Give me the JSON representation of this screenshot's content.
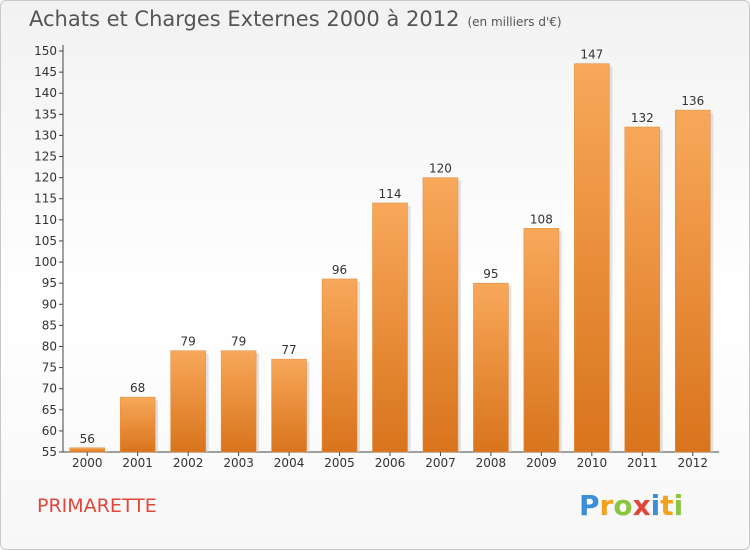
{
  "chart_data": {
    "type": "bar",
    "title": "Achats et Charges Externes 2000 à 2012",
    "subtitle": "(en milliers d'€)",
    "categories": [
      "2000",
      "2001",
      "2002",
      "2003",
      "2004",
      "2005",
      "2006",
      "2007",
      "2008",
      "2009",
      "2010",
      "2011",
      "2012"
    ],
    "values": [
      56,
      68,
      79,
      79,
      77,
      96,
      114,
      120,
      95,
      108,
      147,
      132,
      136
    ],
    "value_labels": [
      "56",
      "68",
      "79",
      "79",
      "77",
      "96",
      "114",
      "120",
      "95",
      "108",
      "147",
      "132",
      "136"
    ],
    "ylim": [
      55,
      150
    ],
    "yticks": [
      55,
      60,
      65,
      70,
      75,
      80,
      85,
      90,
      95,
      100,
      105,
      110,
      115,
      120,
      125,
      130,
      135,
      140,
      145,
      150
    ],
    "ytick_labels": [
      "55",
      "60",
      "65",
      "70",
      "75",
      "80",
      "85",
      "90",
      "95",
      "100",
      "105",
      "110",
      "115",
      "120",
      "125",
      "130",
      "135",
      "140",
      "145",
      "150"
    ],
    "grid": false,
    "legend": "none",
    "bar_color_top": "#f8a85a",
    "bar_color_bottom": "#d9741c"
  },
  "footer": {
    "commune": "PRIMARETTE",
    "logo": {
      "letters": [
        "P",
        "r",
        "o",
        "x",
        "i",
        "t",
        "i"
      ],
      "colors": [
        "#3a8fd6",
        "#f3a21b",
        "#8bc53f",
        "#e2463a",
        "#3a8fd6",
        "#f3a21b",
        "#8bc53f"
      ]
    }
  }
}
